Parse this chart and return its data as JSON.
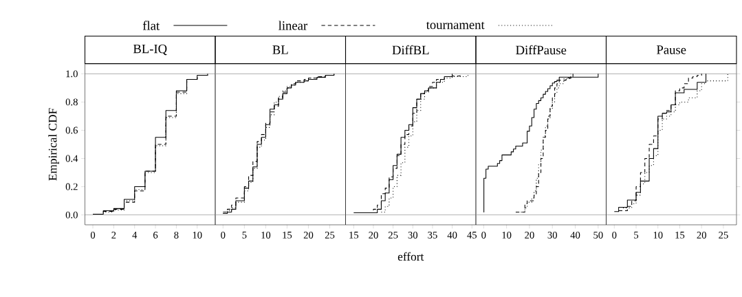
{
  "chart_data": [
    {
      "type": "step",
      "title": "BL-IQ",
      "ylabel": "Empirical CDF",
      "legend": "top",
      "xlim": [
        -0.76,
        11.73
      ],
      "ylim": [
        -0.07,
        1.07
      ],
      "xticks": [
        0,
        2,
        4,
        6,
        8,
        10
      ],
      "yticks": [
        {
          "value": 0,
          "label": "0.0"
        },
        0.2,
        0.4,
        0.6,
        0.8,
        {
          "value": 1,
          "label": "1.0"
        }
      ],
      "ref_lines": [
        {
          "axis": "y",
          "value": 0,
          "color": "#999999"
        },
        {
          "axis": "y",
          "value": 1,
          "color": "#999999"
        }
      ],
      "series": [
        {
          "name": "flat",
          "color": "#000000",
          "line_style": "solid",
          "x": [
            0,
            1,
            2,
            3,
            4,
            5,
            6,
            7,
            8,
            9,
            10,
            11
          ],
          "values": [
            0.005,
            0.03,
            0.045,
            0.11,
            0.2,
            0.31,
            0.55,
            0.74,
            0.88,
            0.96,
            0.99,
            1.0
          ]
        },
        {
          "name": "linear",
          "color": "#000000",
          "line_style": "dashed",
          "x": [
            0,
            1,
            2,
            3,
            4,
            5,
            6,
            7,
            8,
            9,
            10,
            11
          ],
          "values": [
            0.005,
            0.025,
            0.04,
            0.09,
            0.17,
            0.31,
            0.5,
            0.7,
            0.87,
            0.96,
            0.99,
            1.0
          ]
        },
        {
          "name": "tournament",
          "color": "#000000",
          "line_style": "dotted",
          "x": [
            0,
            1,
            2,
            3,
            4,
            5,
            6,
            7,
            8,
            9,
            10,
            11
          ],
          "values": [
            0.005,
            0.02,
            0.035,
            0.1,
            0.18,
            0.3,
            0.49,
            0.69,
            0.86,
            0.96,
            0.99,
            1.0
          ]
        }
      ]
    },
    {
      "type": "step",
      "title": "BL",
      "tick_labels": "x",
      "xlim": [
        -1.82,
        28.7
      ],
      "ylim": [
        -0.07,
        1.07
      ],
      "xticks": [
        0,
        5,
        10,
        15,
        20,
        25
      ],
      "ref_lines": [
        {
          "axis": "y",
          "value": 0,
          "color": "#999999"
        },
        {
          "axis": "y",
          "value": 1,
          "color": "#999999"
        }
      ],
      "series": [
        {
          "color": "#000000",
          "line_style": "solid",
          "x": [
            0,
            1,
            2,
            3,
            5,
            6,
            7,
            8,
            9,
            10,
            11,
            12,
            13,
            14,
            15,
            16,
            17,
            19,
            20,
            22,
            24,
            26
          ],
          "values": [
            0.01,
            0.02,
            0.04,
            0.1,
            0.19,
            0.24,
            0.34,
            0.5,
            0.55,
            0.64,
            0.75,
            0.78,
            0.82,
            0.86,
            0.9,
            0.92,
            0.94,
            0.95,
            0.96,
            0.975,
            0.99,
            1.0
          ]
        },
        {
          "color": "#000000",
          "line_style": "dashed",
          "x": [
            0,
            1,
            2,
            3,
            5,
            6,
            7,
            8,
            9,
            10,
            11,
            12,
            13,
            14,
            15,
            16,
            17,
            19,
            20,
            22,
            24,
            26
          ],
          "values": [
            0.02,
            0.04,
            0.07,
            0.12,
            0.2,
            0.28,
            0.38,
            0.52,
            0.57,
            0.65,
            0.73,
            0.77,
            0.83,
            0.87,
            0.9,
            0.93,
            0.95,
            0.96,
            0.97,
            0.98,
            0.99,
            1.0
          ]
        },
        {
          "color": "#000000",
          "line_style": "dotted",
          "x": [
            0,
            1,
            2,
            3,
            5,
            6,
            7,
            8,
            9,
            10,
            11,
            12,
            13,
            14,
            15,
            16,
            17,
            19,
            20,
            22,
            24,
            26
          ],
          "values": [
            0.01,
            0.03,
            0.05,
            0.09,
            0.17,
            0.23,
            0.33,
            0.48,
            0.53,
            0.62,
            0.71,
            0.8,
            0.84,
            0.88,
            0.91,
            0.92,
            0.94,
            0.95,
            0.97,
            0.98,
            0.99,
            1.0
          ]
        }
      ]
    },
    {
      "type": "step",
      "title": "DiffBL",
      "tick_labels": "x",
      "xlabel": "effort",
      "xlim": [
        12.94,
        46.0
      ],
      "ylim": [
        -0.07,
        1.07
      ],
      "xticks": [
        15,
        20,
        25,
        30,
        35,
        40,
        45
      ],
      "ref_lines": [
        {
          "axis": "y",
          "value": 0,
          "color": "#999999"
        },
        {
          "axis": "y",
          "value": 1,
          "color": "#999999"
        }
      ],
      "series": [
        {
          "color": "#000000",
          "line_style": "solid",
          "x": [
            15,
            21,
            22,
            23,
            24,
            25,
            26,
            27,
            28,
            29,
            30,
            31,
            32,
            33,
            34,
            36,
            37,
            38,
            40
          ],
          "values": [
            0.015,
            0.04,
            0.1,
            0.155,
            0.25,
            0.35,
            0.43,
            0.55,
            0.6,
            0.64,
            0.76,
            0.82,
            0.86,
            0.88,
            0.9,
            0.94,
            0.96,
            0.98,
            1.0
          ]
        },
        {
          "color": "#000000",
          "line_style": "dashed",
          "x": [
            19,
            20,
            21,
            22,
            23,
            24,
            25,
            26,
            27,
            28,
            29,
            30,
            31,
            32,
            33,
            34,
            35,
            36,
            38,
            40,
            42
          ],
          "values": [
            0.015,
            0.04,
            0.07,
            0.15,
            0.19,
            0.27,
            0.33,
            0.42,
            0.5,
            0.57,
            0.63,
            0.72,
            0.82,
            0.86,
            0.88,
            0.91,
            0.94,
            0.96,
            0.98,
            0.985,
            1.0
          ]
        },
        {
          "color": "#000000",
          "line_style": "dotted",
          "x": [
            22,
            23,
            24,
            25,
            26,
            27,
            28,
            29,
            30,
            31,
            32,
            33,
            34,
            36,
            38,
            40,
            44
          ],
          "values": [
            0.02,
            0.06,
            0.12,
            0.2,
            0.28,
            0.37,
            0.48,
            0.56,
            0.66,
            0.74,
            0.82,
            0.87,
            0.9,
            0.94,
            0.97,
            0.98,
            1.0
          ]
        }
      ]
    },
    {
      "type": "step",
      "title": "DiffPause",
      "tick_labels": "x",
      "xlim": [
        -3.4,
        53.5
      ],
      "ylim": [
        -0.07,
        1.07
      ],
      "xticks": [
        0,
        10,
        20,
        30,
        40,
        50
      ],
      "ref_lines": [
        {
          "axis": "y",
          "value": 0,
          "color": "#999999"
        },
        {
          "axis": "y",
          "value": 1,
          "color": "#999999"
        }
      ],
      "series": [
        {
          "color": "#000000",
          "line_style": "solid",
          "x": [
            0,
            0.1,
            1,
            2,
            6,
            7,
            8,
            12,
            13,
            14,
            17,
            19,
            20,
            21,
            22,
            23,
            24,
            25,
            26,
            27,
            28,
            29,
            30,
            31,
            32,
            33,
            50
          ],
          "values": [
            0.02,
            0.26,
            0.325,
            0.345,
            0.365,
            0.385,
            0.425,
            0.447,
            0.467,
            0.488,
            0.51,
            0.593,
            0.63,
            0.69,
            0.75,
            0.79,
            0.81,
            0.83,
            0.855,
            0.875,
            0.895,
            0.915,
            0.935,
            0.945,
            0.955,
            0.976,
            1.0
          ]
        },
        {
          "color": "#000000",
          "line_style": "dashed",
          "x": [
            14,
            18,
            19,
            22,
            23,
            24,
            25,
            26,
            27,
            28,
            29,
            30,
            31,
            32,
            33,
            36,
            39
          ],
          "values": [
            0.02,
            0.08,
            0.1,
            0.14,
            0.2,
            0.3,
            0.4,
            0.55,
            0.6,
            0.7,
            0.77,
            0.83,
            0.9,
            0.93,
            0.955,
            0.97,
            1.0
          ]
        },
        {
          "color": "#000000",
          "line_style": "dotted",
          "x": [
            15,
            18,
            19,
            21,
            22,
            23,
            24,
            25,
            26,
            27,
            28,
            29,
            30,
            31,
            32,
            33,
            35,
            38
          ],
          "values": [
            0.02,
            0.05,
            0.09,
            0.12,
            0.17,
            0.26,
            0.36,
            0.46,
            0.56,
            0.63,
            0.68,
            0.75,
            0.8,
            0.86,
            0.9,
            0.93,
            0.965,
            1.0
          ]
        }
      ]
    },
    {
      "type": "step",
      "title": "Pause",
      "tick_labels": "x",
      "xlim": [
        -1.86,
        28.0
      ],
      "ylim": [
        -0.07,
        1.07
      ],
      "xticks": [
        0,
        5,
        10,
        15,
        20,
        25
      ],
      "yticks": [
        0,
        0.2,
        0.4,
        0.6,
        0.8,
        1
      ],
      "ref_lines": [
        {
          "axis": "y",
          "value": 0,
          "color": "#999999"
        },
        {
          "axis": "y",
          "value": 1,
          "color": "#999999"
        }
      ],
      "series": [
        {
          "color": "#000000",
          "line_style": "solid",
          "x": [
            0,
            1,
            3,
            5,
            6,
            8,
            9,
            10,
            11,
            12,
            13,
            14,
            16,
            19,
            21
          ],
          "values": [
            0.024,
            0.054,
            0.105,
            0.16,
            0.24,
            0.4,
            0.47,
            0.7,
            0.72,
            0.73,
            0.78,
            0.865,
            0.89,
            0.94,
            1.0
          ]
        },
        {
          "color": "#000000",
          "line_style": "dashed",
          "x": [
            1,
            3,
            4,
            5,
            6,
            7,
            8,
            9,
            10,
            11,
            12,
            13,
            14,
            15,
            16,
            17,
            18,
            19,
            20
          ],
          "values": [
            0.03,
            0.06,
            0.1,
            0.2,
            0.3,
            0.4,
            0.5,
            0.56,
            0.68,
            0.72,
            0.74,
            0.78,
            0.88,
            0.9,
            0.93,
            0.97,
            0.98,
            0.99,
            1.0
          ]
        },
        {
          "color": "#000000",
          "line_style": "dotted",
          "x": [
            2,
            4,
            5,
            6,
            7,
            8,
            9,
            10,
            11,
            12,
            13,
            14,
            15,
            17,
            19,
            20,
            21,
            26
          ],
          "values": [
            0.05,
            0.08,
            0.14,
            0.22,
            0.3,
            0.35,
            0.42,
            0.6,
            0.68,
            0.7,
            0.73,
            0.78,
            0.8,
            0.83,
            0.88,
            0.93,
            0.95,
            1.0
          ]
        }
      ]
    }
  ]
}
